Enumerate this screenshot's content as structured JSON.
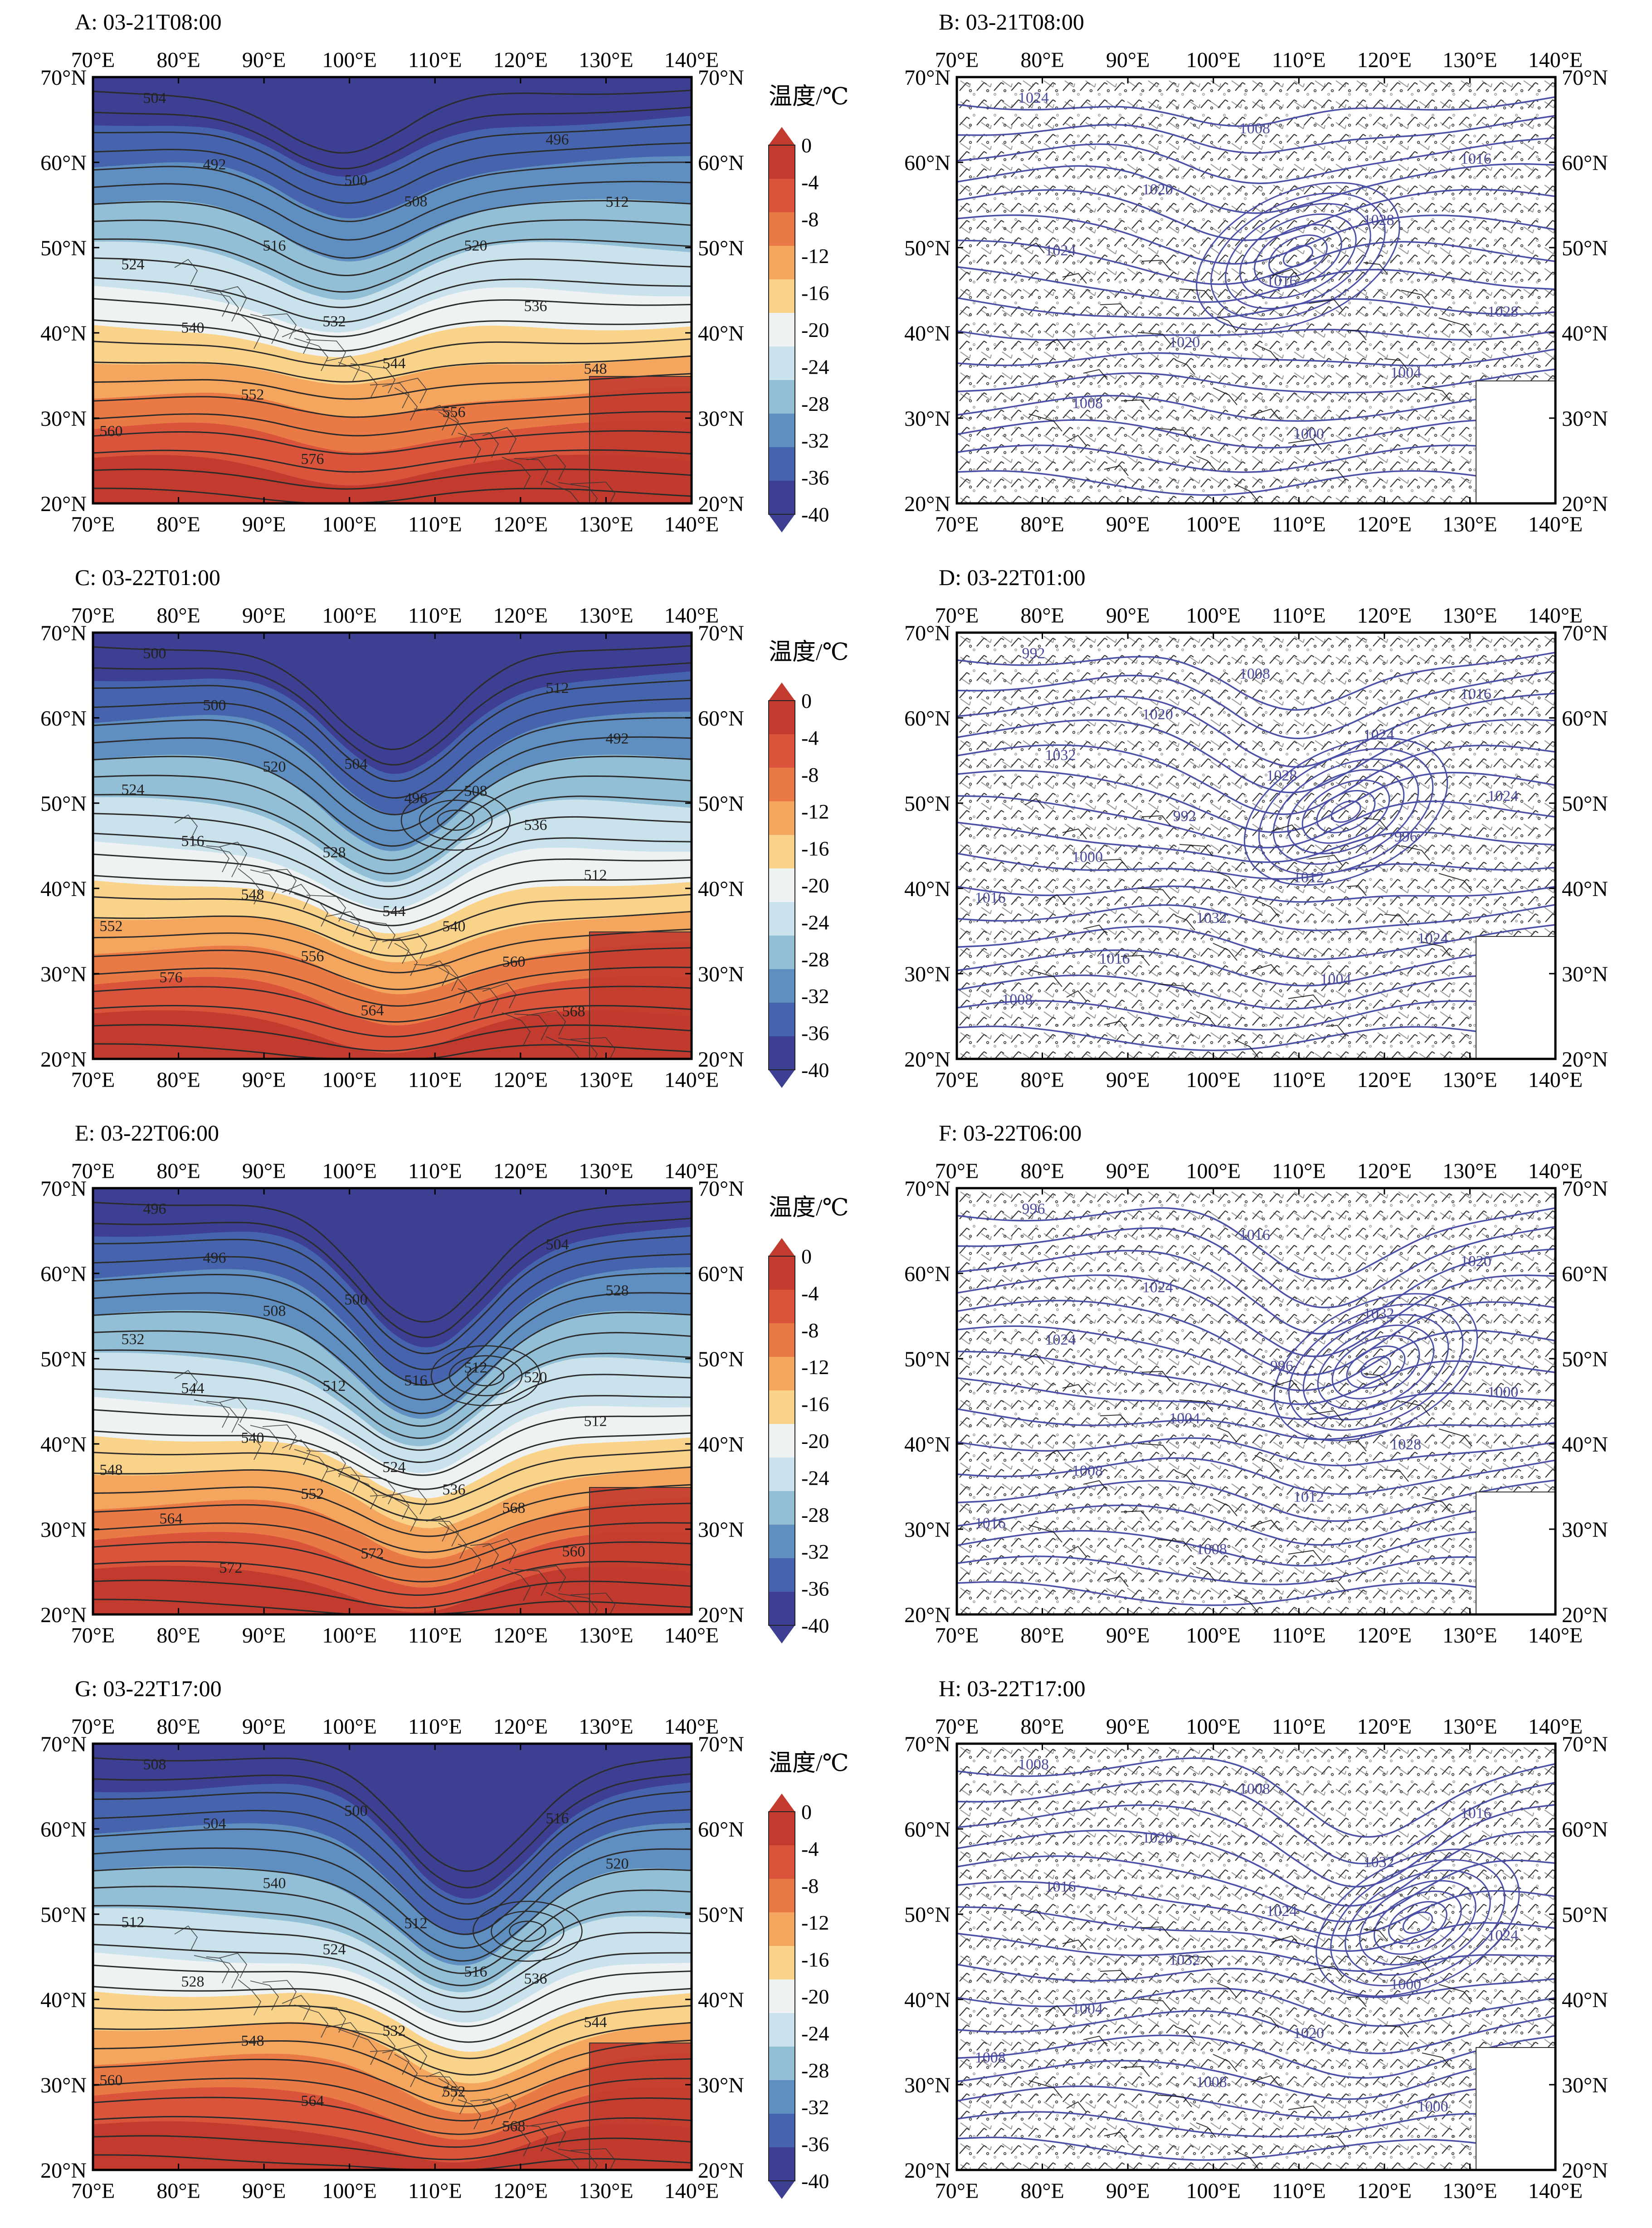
{
  "figure": {
    "colorbar": {
      "title": "温度/℃",
      "labels": [
        "0",
        "-4",
        "-8",
        "-12",
        "-16",
        "-20",
        "-24",
        "-28",
        "-32",
        "-36",
        "-40"
      ],
      "colors": [
        "#c23b2e",
        "#d9543a",
        "#ea7a45",
        "#f4a55e",
        "#f9d38a",
        "#eef2f2",
        "#c9e2ec",
        "#92bfd6",
        "#5e8fc0",
        "#4664ad",
        "#3d3f92"
      ]
    },
    "axes": {
      "lon_labels": [
        "70°E",
        "80°E",
        "90°E",
        "100°E",
        "110°E",
        "120°E",
        "130°E",
        "140°E"
      ],
      "lat_labels": [
        "70°N",
        "60°N",
        "50°N",
        "40°N",
        "30°N",
        "20°N"
      ]
    },
    "panels": [
      {
        "id": "A",
        "title": "A: 03-21T08:00",
        "kind": "height",
        "contour_labels": [
          "504",
          "500",
          "496",
          "492",
          "508",
          "512",
          "516",
          "520",
          "524",
          "532",
          "536",
          "540",
          "544",
          "548",
          "552",
          "556",
          "560",
          "576"
        ]
      },
      {
        "id": "B",
        "title": "B: 03-21T08:00",
        "kind": "pressure",
        "contour_labels": [
          "1024",
          "1008",
          "1016",
          "1020",
          "1028",
          "1024",
          "1016",
          "1028",
          "1020",
          "1004",
          "1008",
          "1000"
        ]
      },
      {
        "id": "C",
        "title": "C: 03-22T01:00",
        "kind": "height",
        "contour_labels": [
          "500",
          "504",
          "512",
          "500",
          "496",
          "492",
          "520",
          "508",
          "524",
          "528",
          "536",
          "516",
          "544",
          "512",
          "548",
          "540",
          "552",
          "556",
          "560",
          "576",
          "564",
          "568"
        ]
      },
      {
        "id": "D",
        "title": "D: 03-22T01:00",
        "kind": "pressure",
        "contour_labels": [
          "992",
          "1008",
          "1016",
          "1020",
          "1024",
          "1032",
          "1028",
          "1024",
          "992",
          "996",
          "1000",
          "1012",
          "1016",
          "1032",
          "1024",
          "1016",
          "1004",
          "1008"
        ]
      },
      {
        "id": "E",
        "title": "E: 03-22T06:00",
        "kind": "height",
        "contour_labels": [
          "496",
          "500",
          "504",
          "496",
          "516",
          "528",
          "508",
          "512",
          "532",
          "512",
          "520",
          "544",
          "524",
          "512",
          "540",
          "536",
          "548",
          "552",
          "568",
          "564",
          "572",
          "560",
          "572"
        ]
      },
      {
        "id": "F",
        "title": "F: 03-22T06:00",
        "kind": "pressure",
        "contour_labels": [
          "996",
          "1016",
          "1020",
          "1024",
          "1032",
          "1024",
          "996",
          "1000",
          "1004",
          "1028",
          "1008",
          "1012",
          "1016",
          "1008"
        ]
      },
      {
        "id": "G",
        "title": "G: 03-22T17:00",
        "kind": "height",
        "contour_labels": [
          "508",
          "500",
          "516",
          "504",
          "512",
          "520",
          "540",
          "516",
          "512",
          "524",
          "536",
          "528",
          "532",
          "544",
          "548",
          "552",
          "560",
          "564",
          "568"
        ]
      },
      {
        "id": "H",
        "title": "H: 03-22T17:00",
        "kind": "pressure",
        "contour_labels": [
          "1008",
          "1008",
          "1016",
          "1020",
          "1032",
          "1016",
          "1024",
          "1024",
          "1032",
          "1000",
          "1004",
          "1020",
          "1008",
          "1008",
          "1000"
        ]
      }
    ]
  }
}
